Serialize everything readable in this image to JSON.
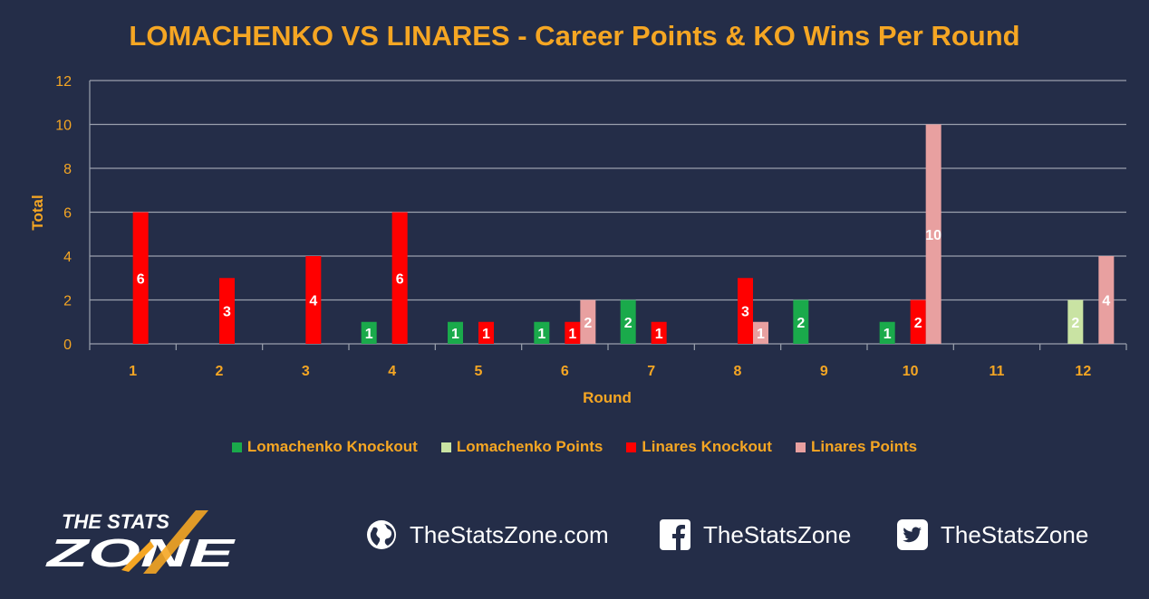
{
  "chart_data": {
    "type": "bar",
    "title": "LOMACHENKO VS LINARES - Career Points & KO Wins Per Round",
    "xlabel": "Round",
    "ylabel": "Total",
    "ylim": [
      0,
      12
    ],
    "yticks": [
      0,
      2,
      4,
      6,
      8,
      10,
      12
    ],
    "grid": true,
    "legend_position": "bottom",
    "categories": [
      "1",
      "2",
      "3",
      "4",
      "5",
      "6",
      "7",
      "8",
      "9",
      "10",
      "11",
      "12"
    ],
    "series": [
      {
        "name": "Lomachenko Knockout",
        "color": "#1aaa4b",
        "values": [
          0,
          0,
          0,
          1,
          1,
          1,
          2,
          0,
          2,
          1,
          0,
          0
        ]
      },
      {
        "name": "Lomachenko Points",
        "color": "#c9e3a3",
        "values": [
          0,
          0,
          0,
          0,
          0,
          0,
          0,
          0,
          0,
          0,
          0,
          2
        ]
      },
      {
        "name": "Linares Knockout",
        "color": "#ff0000",
        "values": [
          6,
          3,
          4,
          6,
          1,
          1,
          1,
          3,
          0,
          2,
          0,
          0
        ]
      },
      {
        "name": "Linares Points",
        "color": "#e8a0a0",
        "values": [
          0,
          0,
          0,
          0,
          0,
          2,
          0,
          1,
          0,
          10,
          0,
          4
        ]
      }
    ]
  },
  "footer": {
    "logo": {
      "line1": "THE STATS",
      "line2": "ZONE"
    },
    "website": "TheStatsZone.com",
    "facebook": "TheStatsZone",
    "twitter": "TheStatsZone"
  }
}
